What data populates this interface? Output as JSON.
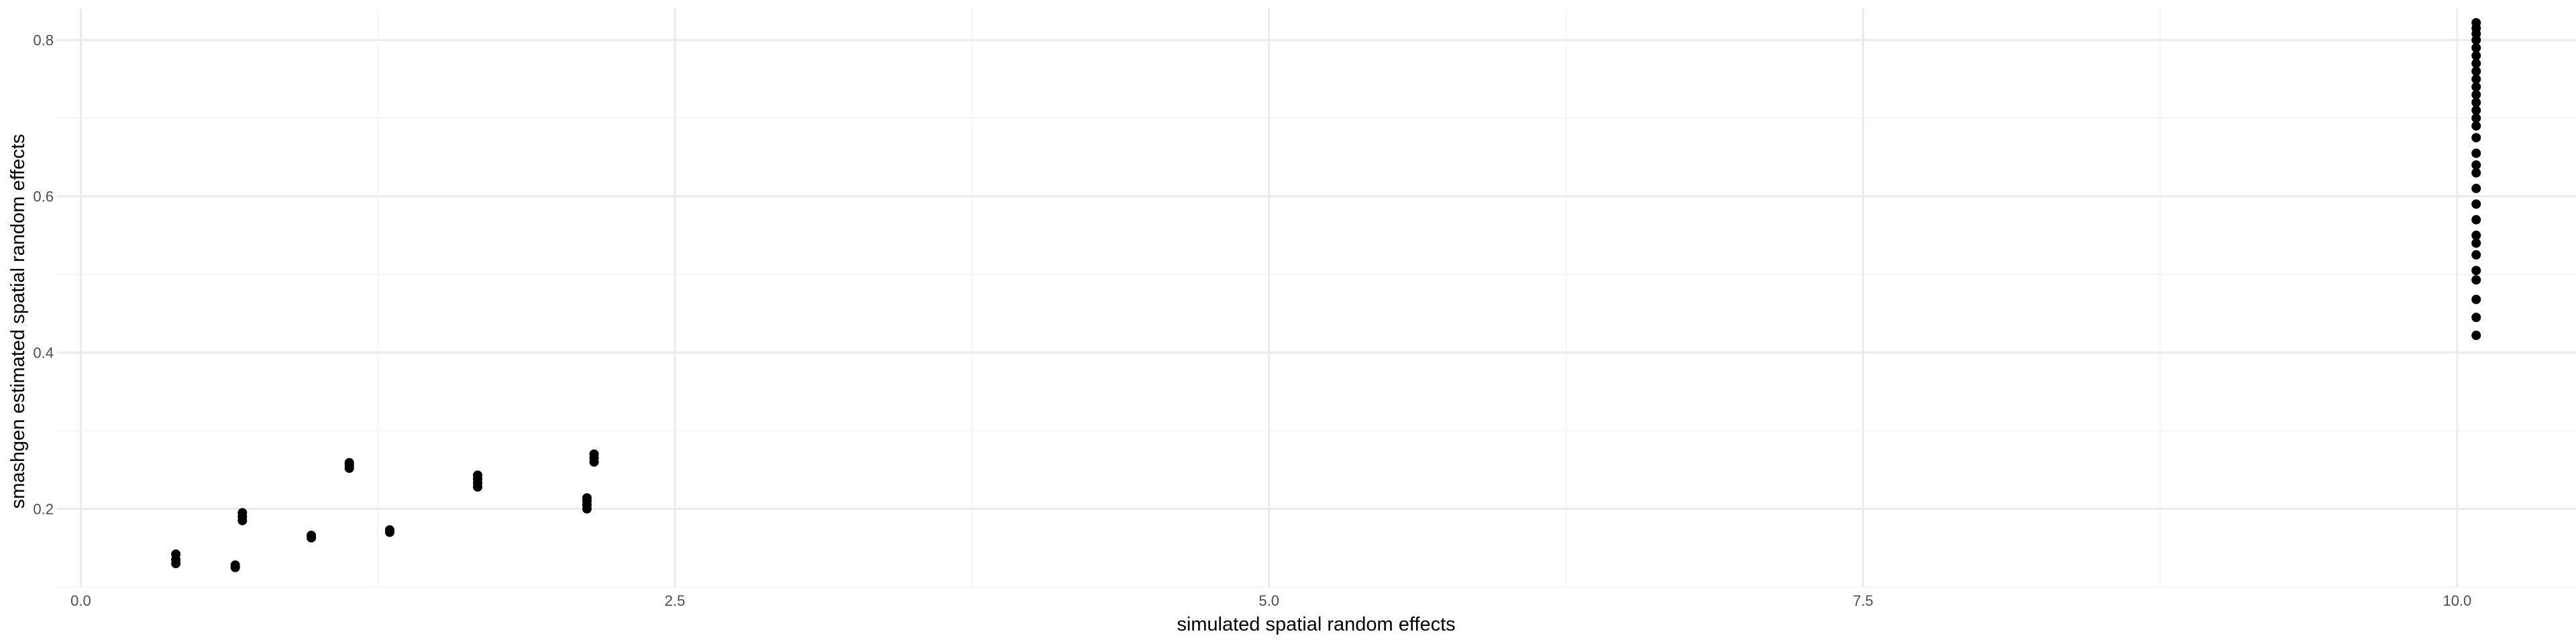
{
  "chart_data": {
    "type": "scatter",
    "title": "",
    "xlabel": "simulated spatial random effects",
    "ylabel": "smashgen estimated spatial random effects",
    "xlim": [
      -0.1,
      10.5
    ],
    "ylim": [
      0.1,
      0.84
    ],
    "x_ticks": [
      0.0,
      2.5,
      5.0,
      7.5,
      10.0
    ],
    "x_tick_labels": [
      "0.0",
      "2.5",
      "5.0",
      "7.5",
      "10.0"
    ],
    "y_ticks": [
      0.2,
      0.4,
      0.6,
      0.8
    ],
    "y_tick_labels": [
      "0.2",
      "0.4",
      "0.6",
      "0.8"
    ],
    "grid": true,
    "point_color": "#000000",
    "grid_major_color": "#ebebeb",
    "grid_minor_color": "#f5f5f5",
    "points": [
      {
        "x": 0.4,
        "y": 0.13
      },
      {
        "x": 0.4,
        "y": 0.135
      },
      {
        "x": 0.4,
        "y": 0.142
      },
      {
        "x": 0.65,
        "y": 0.125
      },
      {
        "x": 0.65,
        "y": 0.128
      },
      {
        "x": 0.68,
        "y": 0.185
      },
      {
        "x": 0.68,
        "y": 0.19
      },
      {
        "x": 0.68,
        "y": 0.195
      },
      {
        "x": 0.97,
        "y": 0.163
      },
      {
        "x": 0.97,
        "y": 0.166
      },
      {
        "x": 1.13,
        "y": 0.252
      },
      {
        "x": 1.13,
        "y": 0.256
      },
      {
        "x": 1.13,
        "y": 0.259
      },
      {
        "x": 1.3,
        "y": 0.17
      },
      {
        "x": 1.3,
        "y": 0.173
      },
      {
        "x": 1.67,
        "y": 0.228
      },
      {
        "x": 1.67,
        "y": 0.233
      },
      {
        "x": 1.67,
        "y": 0.238
      },
      {
        "x": 1.67,
        "y": 0.243
      },
      {
        "x": 2.13,
        "y": 0.2
      },
      {
        "x": 2.13,
        "y": 0.205
      },
      {
        "x": 2.13,
        "y": 0.21
      },
      {
        "x": 2.13,
        "y": 0.214
      },
      {
        "x": 2.16,
        "y": 0.26
      },
      {
        "x": 2.16,
        "y": 0.265
      },
      {
        "x": 2.16,
        "y": 0.27
      },
      {
        "x": 10.08,
        "y": 0.422
      },
      {
        "x": 10.08,
        "y": 0.445
      },
      {
        "x": 10.08,
        "y": 0.468
      },
      {
        "x": 10.08,
        "y": 0.493
      },
      {
        "x": 10.08,
        "y": 0.505
      },
      {
        "x": 10.08,
        "y": 0.525
      },
      {
        "x": 10.08,
        "y": 0.54
      },
      {
        "x": 10.08,
        "y": 0.55
      },
      {
        "x": 10.08,
        "y": 0.57
      },
      {
        "x": 10.08,
        "y": 0.59
      },
      {
        "x": 10.08,
        "y": 0.61
      },
      {
        "x": 10.08,
        "y": 0.63
      },
      {
        "x": 10.08,
        "y": 0.64
      },
      {
        "x": 10.08,
        "y": 0.655
      },
      {
        "x": 10.08,
        "y": 0.675
      },
      {
        "x": 10.08,
        "y": 0.69
      },
      {
        "x": 10.08,
        "y": 0.7
      },
      {
        "x": 10.08,
        "y": 0.71
      },
      {
        "x": 10.08,
        "y": 0.72
      },
      {
        "x": 10.08,
        "y": 0.73
      },
      {
        "x": 10.08,
        "y": 0.74
      },
      {
        "x": 10.08,
        "y": 0.75
      },
      {
        "x": 10.08,
        "y": 0.76
      },
      {
        "x": 10.08,
        "y": 0.77
      },
      {
        "x": 10.08,
        "y": 0.78
      },
      {
        "x": 10.08,
        "y": 0.79
      },
      {
        "x": 10.08,
        "y": 0.8
      },
      {
        "x": 10.08,
        "y": 0.808
      },
      {
        "x": 10.08,
        "y": 0.815
      },
      {
        "x": 10.08,
        "y": 0.822
      }
    ]
  }
}
